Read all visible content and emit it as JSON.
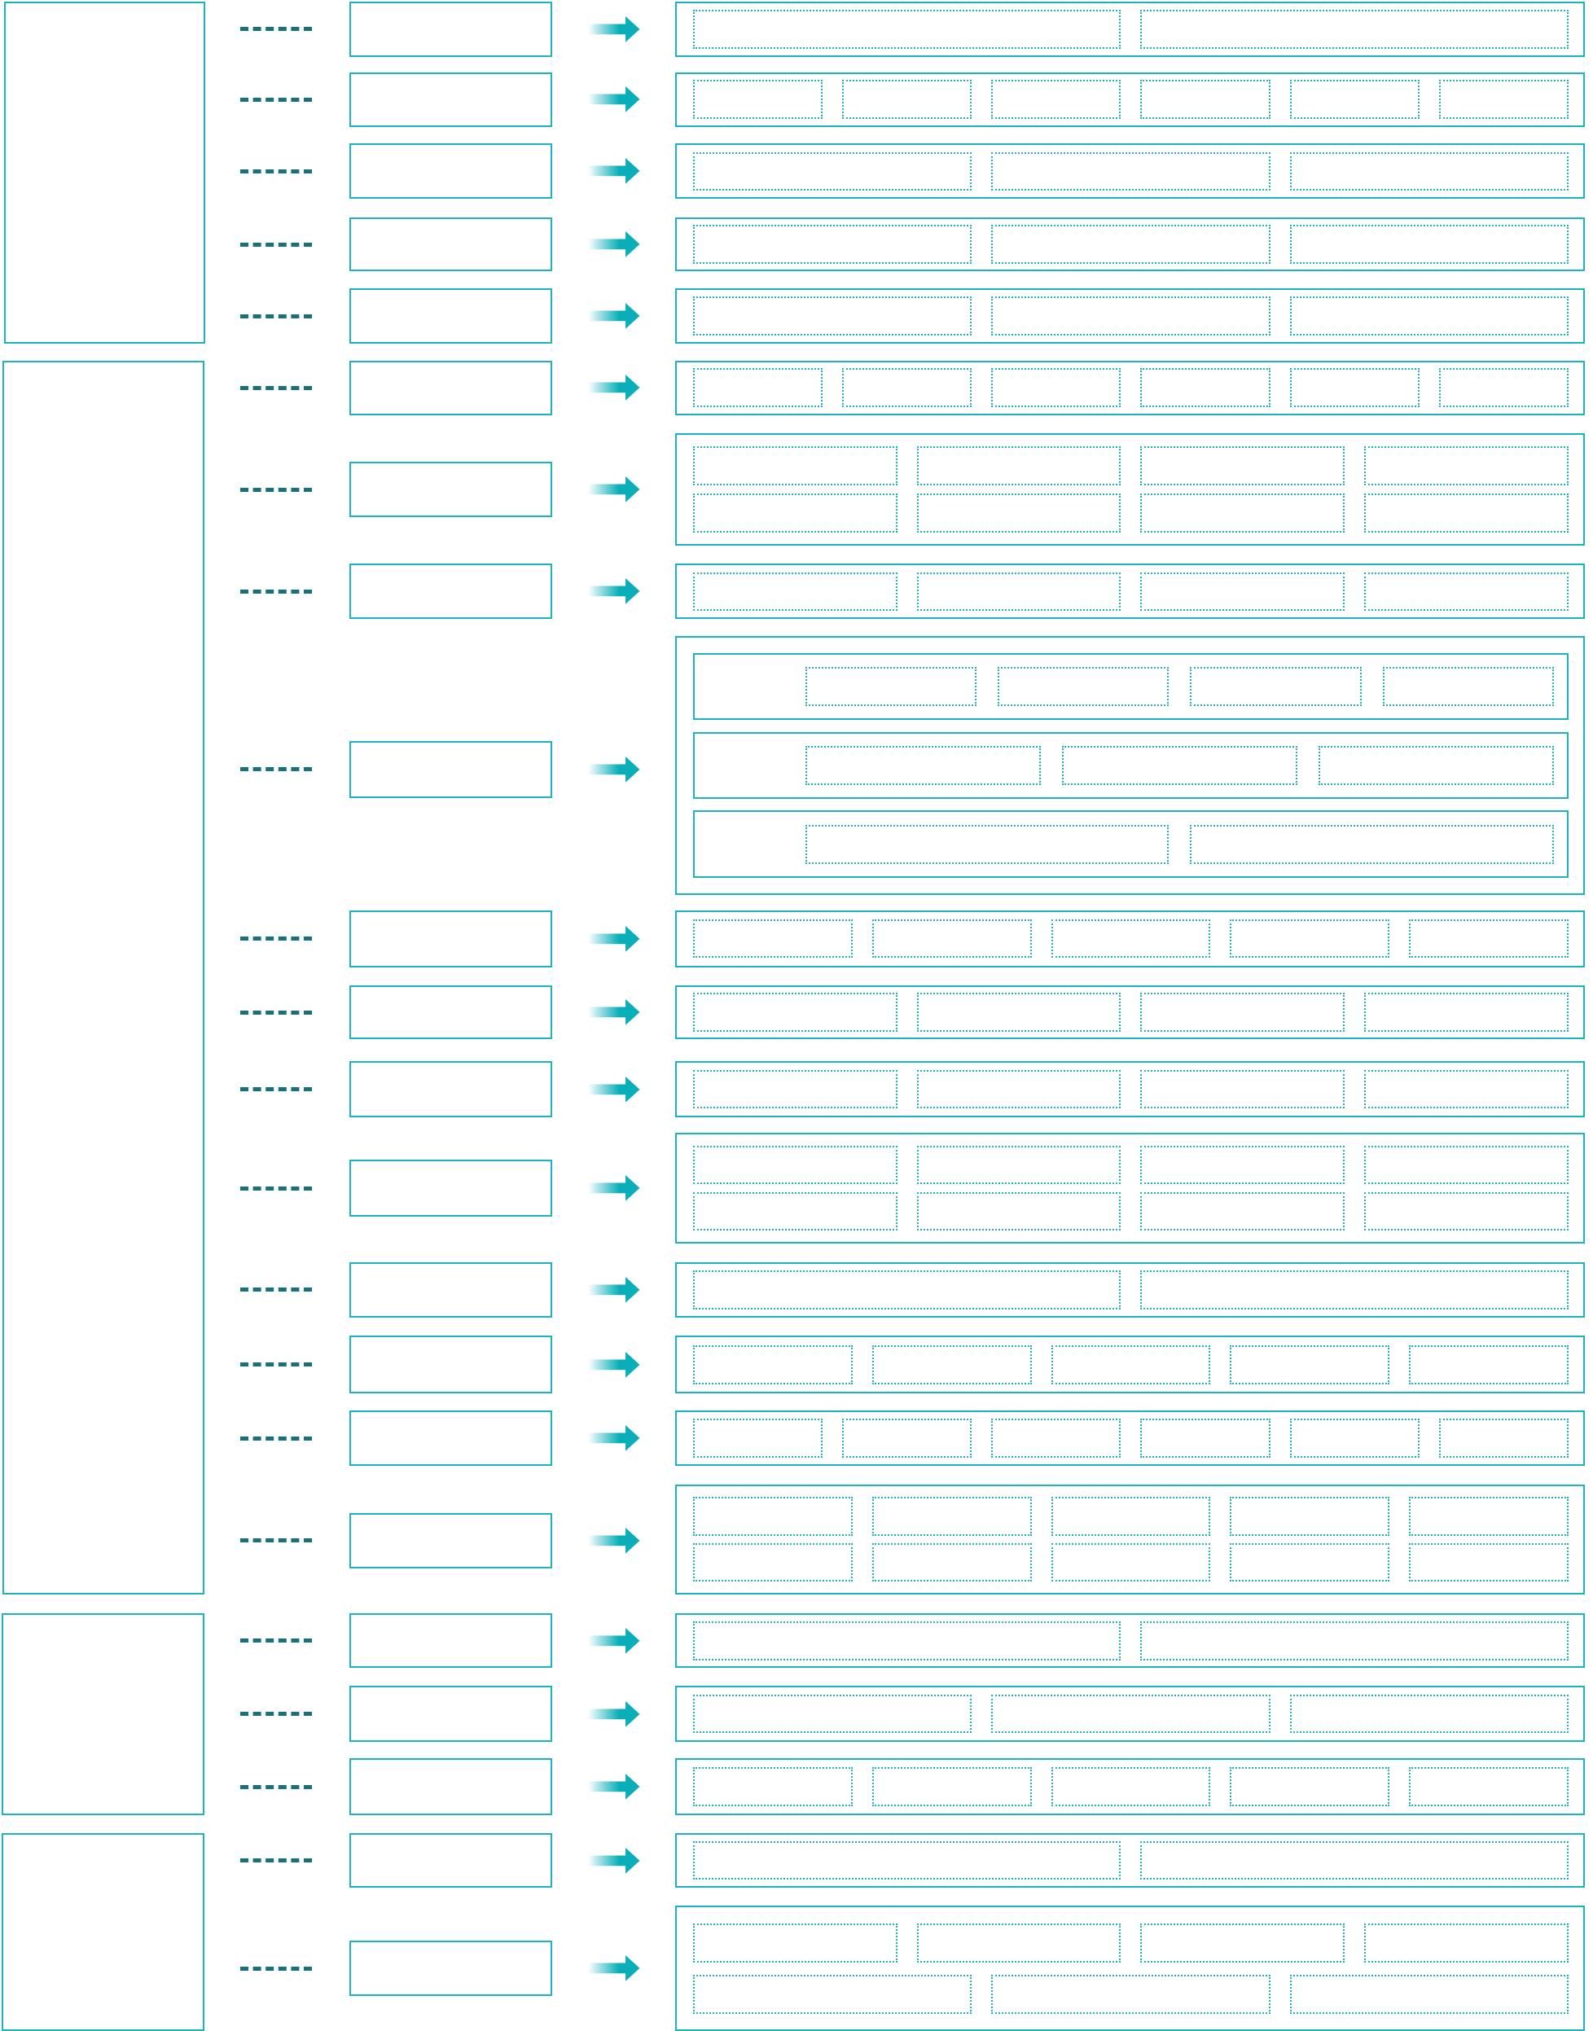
{
  "colors": {
    "box_border": "#1bb3bd",
    "connector": "#17707a",
    "arrow": "#0aaeb8"
  },
  "icons": {
    "connector": "dashed-line",
    "arrow": "right-arrow-icon"
  }
}
